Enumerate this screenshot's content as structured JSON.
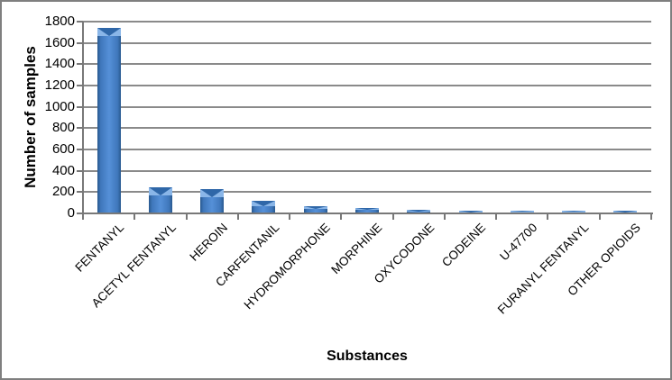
{
  "chart_data": {
    "type": "bar",
    "title": "",
    "xlabel": "Substances",
    "ylabel": "Number of samples",
    "categories": [
      "FENTANYL",
      "ACETYL FENTANYL",
      "HEROIN",
      "CARFENTANIL",
      "HYDROMORPHONE",
      "MORPHINE",
      "OXYCODONE",
      "CODEINE",
      "U-47700",
      "FURANYL FENTANYL",
      "OTHER OPIOIDS"
    ],
    "values": [
      1730,
      235,
      220,
      110,
      55,
      45,
      28,
      18,
      15,
      15,
      18
    ],
    "ylim": [
      0,
      1800
    ],
    "ytick_step": 200,
    "yticks": [
      0,
      200,
      400,
      600,
      800,
      1000,
      1200,
      1400,
      1600,
      1800
    ],
    "grid": "horizontal",
    "legend": "none",
    "colors": {
      "bar_center": "#5590d8",
      "bar_edge": "#29598f",
      "bar_cap_light": "#8ab6e8",
      "bar_cap_flap": "#2f67a8",
      "gridline": "#8a8a8a",
      "axis": "#787878",
      "text": "#000000",
      "frame_border": "#7f7f7f",
      "background": "#ffffff"
    }
  }
}
